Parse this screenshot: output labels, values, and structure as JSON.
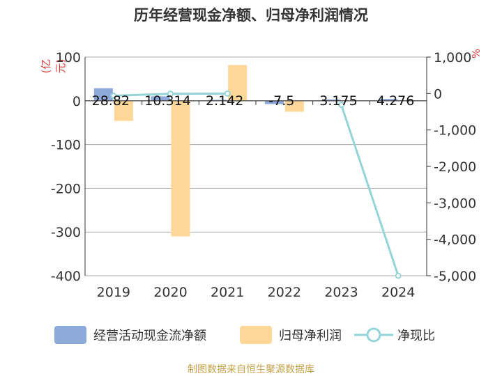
{
  "title": "历年经营现金净额、归母净利润情况",
  "source": "制图数据来自恒生聚源数据库",
  "colors": {
    "bar_cash": "#8eaadb",
    "bar_profit": "#ffd899",
    "line_ratio": "#94d4d8",
    "grid": "#aaaaaa",
    "unit": "#e03c3c"
  },
  "chart_data": {
    "type": "bar",
    "categories": [
      "2019",
      "2020",
      "2021",
      "2022",
      "2023",
      "2024"
    ],
    "series": [
      {
        "name": "经营活动现金流净额",
        "kind": "bar",
        "axis": "left",
        "values": [
          28.82,
          10.31,
          2.142,
          -7.5,
          3.175,
          4.276
        ],
        "labels": [
          "28.82",
          "10.314",
          "2.142",
          "-7.5",
          "3.175",
          "4.276"
        ]
      },
      {
        "name": "归母净利润",
        "kind": "bar",
        "axis": "left",
        "values": [
          -46,
          -310,
          82,
          -25,
          0.5,
          0.5
        ]
      },
      {
        "name": "净现比",
        "kind": "line",
        "axis": "right",
        "values": [
          -60,
          -5,
          0,
          null,
          -310,
          -5000
        ]
      }
    ],
    "left_axis": {
      "unit": "(亿元)",
      "ylim": [
        -400,
        100
      ],
      "ticks": [
        "100",
        "0",
        "-100",
        "-200",
        "-300",
        "-400"
      ]
    },
    "right_axis": {
      "unit": "%",
      "ylim": [
        -5000,
        1000
      ],
      "ticks": [
        "1,000",
        "0",
        "-1,000",
        "-2,000",
        "-3,000",
        "-4,000",
        "-5,000"
      ]
    },
    "grid": true,
    "legend_position": "bottom"
  }
}
